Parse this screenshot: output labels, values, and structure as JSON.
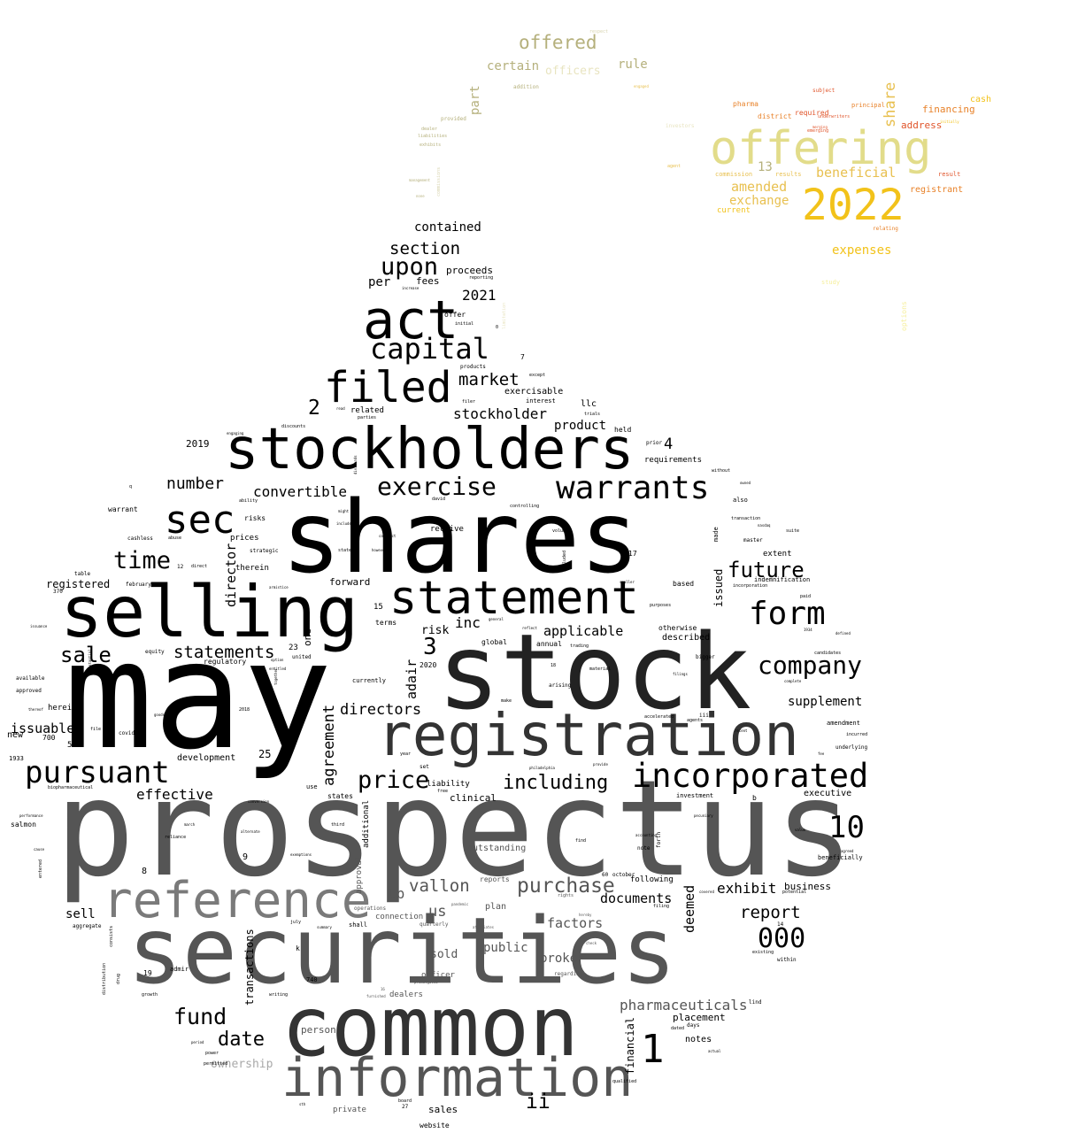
{
  "palette": {
    "black": "#000000",
    "dark": "#1a1a1a",
    "dark_gray": "#2e2e2e",
    "mid_gray": "#555555",
    "gray": "#7a7a7a",
    "light_gray": "#a8a8a8",
    "olive": "#b5b07c",
    "khaki": "#e2dc8a",
    "gold": "#f2c21a",
    "orange": "#e8822a",
    "red_orange": "#e0542a",
    "pale_yellow": "#f6ef9c"
  },
  "words": {
    "may": "may",
    "prospectus": "prospectus",
    "shares": "shares",
    "stock": "stock",
    "securities": "securities",
    "common": "common",
    "selling": "selling",
    "stockholders": "stockholders",
    "registration": "registration",
    "information": "information",
    "reference": "reference",
    "statement": "statement",
    "act": "act",
    "incorporated": "incorporated",
    "filed": "filed",
    "sec": "sec",
    "warrants": "warrants",
    "offering": "offering",
    "2022": "2022",
    "form": "form",
    "capital": "capital",
    "company": "company",
    "exercise": "exercise",
    "pursuant": "pursuant",
    "10": "10",
    "1": "1",
    "000": "000",
    "price": "price",
    "purchase": "purchase",
    "upon": "upon",
    "section": "section",
    "fund": "fund",
    "time": "time",
    "date": "date",
    "sale": "sale",
    "future": "future",
    "ii": "ii",
    "3": "3",
    "2": "2",
    "including": "including",
    "offered": "offered",
    "market": "market",
    "statements": "statements",
    "vallon": "vallon",
    "directors": "directors",
    "agreement": "agreement",
    "convertible": "convertible",
    "effective": "effective",
    "number": "number",
    "stockholder": "stockholder",
    "report": "report",
    "exhibit": "exhibit",
    "documents": "documents",
    "deemed": "deemed",
    "pharmaceuticals": "pharmaceuticals",
    "director": "director",
    "adair": "adair",
    "2021": "2021",
    "contained": "contained",
    "beneficial": "beneficial",
    "amended": "amended",
    "exchange": "exchange",
    "expenses": "expenses",
    "issuable": "issuable",
    "sell": "sell",
    "lp": "lp",
    "us": "us",
    "factors": "factors",
    "broker": "broker",
    "sold": "sold",
    "public": "public",
    "supplement": "supplement",
    "applicable": "applicable",
    "inc": "inc",
    "risk": "risk",
    "product": "product",
    "proceeds": "proceeds",
    "fees": "fees",
    "per": "per",
    "certain": "certain",
    "rule": "rule",
    "part": "part",
    "officers": "officers",
    "share": "share",
    "13": "13",
    "financing": "financing",
    "address": "address",
    "registrant": "registrant",
    "cash": "cash",
    "business": "business",
    "placement": "placement",
    "person": "person",
    "ownership": "ownership",
    "sales": "sales",
    "transactions": "transactions",
    "registered": "registered",
    "4": "4",
    "25": "25",
    "issued": "issued",
    "financial": "financial",
    "notes": "notes",
    "executive": "executive",
    "llc": "llc",
    "development": "development",
    "forward": "forward",
    "terms": "terms",
    "described": "described",
    "plan": "plan",
    "connection": "connection",
    "officer": "officer",
    "dealers": "dealers",
    "clinical": "clinical",
    "outstanding": "outstanding",
    "reports": "reports",
    "liability": "liability",
    "states": "states",
    "additional": "additional",
    "approval": "approval",
    "private": "private",
    "website": "website",
    "2019": "2019",
    "2020": "2020",
    "exercisable": "exercisable",
    "related": "related",
    "interest": "interest",
    "held": "held",
    "receive": "receive",
    "therein": "therein",
    "prices": "prices",
    "risks": "risks",
    "strategic": "strategic",
    "warrant": "warrant",
    "cashless": "cashless",
    "abuse": "abuse",
    "one": "one",
    "23": "23",
    "regulatory": "regulatory",
    "united": "united",
    "equity": "equity",
    "global": "global",
    "annual": "annual",
    "currently": "currently",
    "herein": "herein",
    "new": "new",
    "700": "700",
    "5": "5",
    "1933": "1933",
    "salmon": "salmon",
    "entered": "entered",
    "8": "8",
    "9": "9",
    "19": "19",
    "admir": "admir",
    "growth": "growth",
    "aggregate": "aggregate",
    "740": "740",
    "k": "k",
    "shall": "shall",
    "quarterly": "quarterly",
    "operations": "operations",
    "july": "july",
    "use": "use",
    "third": "third",
    "covid": "covid",
    "2018": "2018",
    "file": "file",
    "requirements": "requirements",
    "without": "without",
    "also": "also",
    "transaction": "transaction",
    "master": "master",
    "extent": "extent",
    "indemnification": "indemnification",
    "incorporation": "incorporation",
    "paid": "paid",
    "made": "made",
    "based": "based",
    "otherwise": "otherwise",
    "bigger": "bigger",
    "amendment": "amendment",
    "underlying": "underlying",
    "investment": "investment",
    "beneficially": "beneficially",
    "following": "following",
    "within": "within",
    "days": "days",
    "qualified": "qualified",
    "b": "b",
    "17": "17",
    "purposes": "purposes",
    "14": "14",
    "existing": "existing",
    "regarding": "regarding",
    "forth": "forth",
    "note": "note",
    "find": "find",
    "october": "october",
    "60": "60",
    "7": "7",
    "products": "products",
    "filer": "filer",
    "trials": "trials",
    "prior": "prior",
    "david": "david",
    "discounts": "discounts",
    "initial": "initial",
    "offer": "offer",
    "reporting": "reporting",
    "limitation": "limitation",
    "0": "0",
    "controlling": "controlling",
    "volume": "volume",
    "15": "15",
    "12": "12",
    "direct": "direct",
    "february": "february",
    "table": "table",
    "370": "370",
    "available": "available",
    "approved": "approved",
    "pharma": "pharma",
    "district": "district",
    "required": "required",
    "subject": "subject",
    "principal": "principal",
    "commission": "commission",
    "results": "results",
    "current": "current",
    "result": "result",
    "relating": "relating",
    "options": "options",
    "study": "study",
    "investors": "investors",
    "agent": "agent",
    "provided": "provided",
    "dealer": "dealer",
    "liabilities": "liabilities",
    "exhibits": "exhibits",
    "commissions": "commissions",
    "addition": "addition",
    "respect": "respect",
    "underwriters": "underwriters",
    "emerging": "emerging",
    "consists": "consists",
    "distribution": "distribution",
    "drug": "drug",
    "biopharmaceutical": "biopharmaceutical",
    "reliance": "reliance",
    "alternate": "alternate",
    "march": "march",
    "dated": "dated",
    "permitted": "permitted",
    "power": "power",
    "period": "period",
    "board": "board",
    "27": "27",
    "1934": "1934",
    "set": "set",
    "year": "year",
    "make": "make",
    "material": "material",
    "trading": "trading",
    "arising": "arising",
    "18": "18",
    "filings": "filings",
    "accelerated": "accelerated",
    "agents": "agents",
    "iii": "iii",
    "defined": "defined",
    "candidates": "candidates",
    "complete": "complete",
    "incurred": "incurred",
    "fee": "fee",
    "agreed": "agreed",
    "value": "value",
    "potential": "potential",
    "covered": "covered",
    "filing": "filing",
    "rights": "rights",
    "pandemic": "pandemic",
    "affiliates": "affiliates",
    "vendor": "vendor",
    "summary": "summary",
    "provide": "provide",
    "philadelphia": "philadelphia",
    "writing": "writing",
    "furnished": "furnished",
    "promulgated": "promulgated",
    "16": "16",
    "sth": "sth",
    "general": "general",
    "entitled": "entitled",
    "option": "option",
    "armistice": "armistice",
    "lind": "lind",
    "accounting": "accounting",
    "pecuniary": "pecuniary",
    "hereby": "hereby",
    "check": "check",
    "however": "however",
    "included": "included",
    "contract": "contract",
    "exemptions": "exemptions",
    "conversion": "conversion",
    "recent": "recent",
    "suite": "suite",
    "owned": "owned",
    "together": "together",
    "except": "except",
    "free": "free",
    "q": "q",
    "ability": "ability",
    "state": "state",
    "might": "might",
    "include": "include",
    "dividends": "dividends",
    "issuance": "issuance",
    "substantial": "substantial",
    "thereof": "thereof",
    "performance": "performance",
    "cause": "cause",
    "goods": "goods",
    "engaging": "engaging",
    "merging": "merging",
    "initially": "initially",
    "engaged": "engaged",
    "management": "management",
    "none": "none",
    "read": "read",
    "parties": "parties",
    "statement_small": "statement",
    "smaller": "smaller",
    "reflect": "reflect",
    "actual": "actual",
    "dealer2": "dealer",
    "increase": "increase",
    "nasdaq": "nasdaq"
  }
}
